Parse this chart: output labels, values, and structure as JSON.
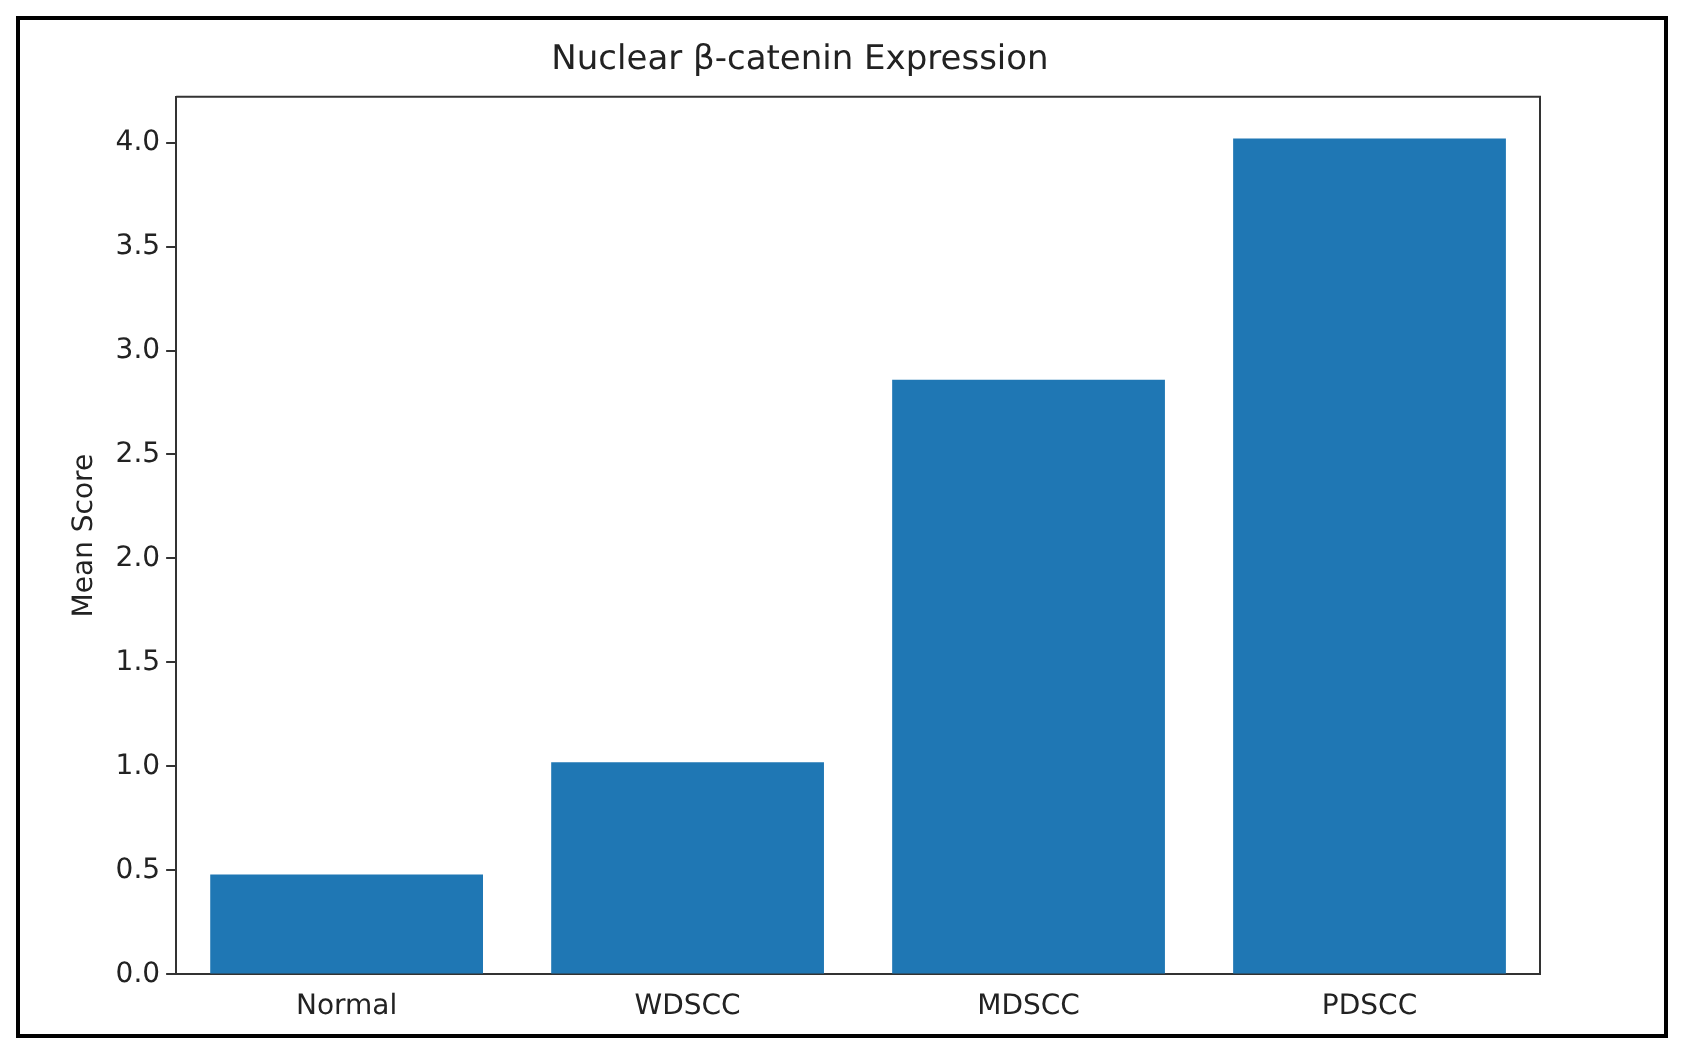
{
  "chart_data": {
    "type": "bar",
    "title": "Nuclear β-catenin Expression",
    "ylabel": "Mean Score",
    "categories": [
      "Normal",
      "WDSCC",
      "MDSCC",
      "PDSCC"
    ],
    "values": [
      0.48,
      1.02,
      2.86,
      4.02
    ],
    "color": "#1f77b4",
    "ylim": [
      0,
      4.22
    ],
    "yticks": [
      {
        "value": 0,
        "label": "0.0"
      },
      0.5,
      {
        "value": 1,
        "label": "1.0"
      },
      1.5,
      {
        "value": 2,
        "label": "2.0"
      },
      2.5,
      {
        "value": 3,
        "label": "3.0"
      },
      3.5,
      {
        "value": 4,
        "label": "4.0"
      }
    ],
    "grid": false,
    "legend": false
  }
}
